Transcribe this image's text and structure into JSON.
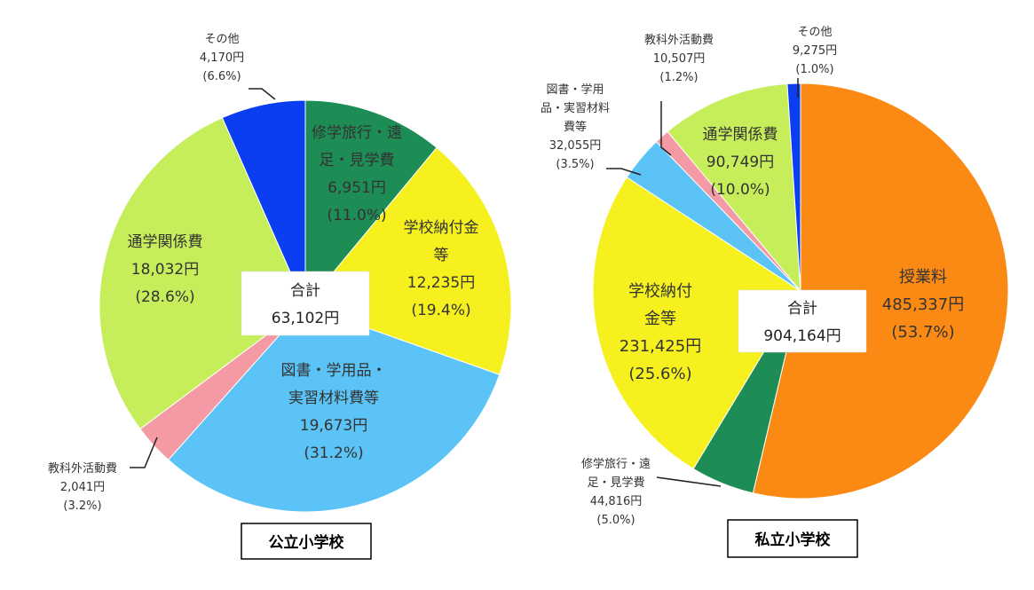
{
  "chart_data": [
    {
      "type": "pie",
      "title": "公立小学校",
      "total_label": "合計",
      "total_value": "63,102円",
      "slices": [
        {
          "name": "修学旅行・遠足・見学費",
          "label_lines": [
            "修学旅行・遠",
            "足・見学費"
          ],
          "value": 6951,
          "value_label": "6,951円",
          "percent": 11.0,
          "percent_label": "(11.0%)",
          "color": "#1e8c55"
        },
        {
          "name": "学校納付金等",
          "label_lines": [
            "学校納付金",
            "等"
          ],
          "value": 12235,
          "value_label": "12,235円",
          "percent": 19.4,
          "percent_label": "(19.4%)",
          "color": "#f5f01e"
        },
        {
          "name": "図書・学用品・実習材料費等",
          "label_lines": [
            "図書・学用品・",
            "実習材料費等"
          ],
          "value": 19673,
          "value_label": "19,673円",
          "percent": 31.2,
          "percent_label": "(31.2%)",
          "color": "#5bc3f5"
        },
        {
          "name": "教科外活動費",
          "label_lines": [
            "教科外活動費"
          ],
          "value": 2041,
          "value_label": "2,041円",
          "percent": 3.2,
          "percent_label": "(3.2%)",
          "color": "#f49aa5"
        },
        {
          "name": "通学関係費",
          "label_lines": [
            "通学関係費"
          ],
          "value": 18032,
          "value_label": "18,032円",
          "percent": 28.6,
          "percent_label": "(28.6%)",
          "color": "#c6ee5a"
        },
        {
          "name": "その他",
          "label_lines": [
            "その他"
          ],
          "value": 4170,
          "value_label": "4,170円",
          "percent": 6.6,
          "percent_label": "(6.6%)",
          "color": "#0b3ef0"
        }
      ]
    },
    {
      "type": "pie",
      "title": "私立小学校",
      "total_label": "合計",
      "total_value": "904,164円",
      "slices": [
        {
          "name": "授業料",
          "label_lines": [
            "授業料"
          ],
          "value": 485337,
          "value_label": "485,337円",
          "percent": 53.7,
          "percent_label": "(53.7%)",
          "color": "#fa8a14"
        },
        {
          "name": "修学旅行・遠足・見学費",
          "label_lines": [
            "修学旅行・遠",
            "足・見学費"
          ],
          "value": 44816,
          "value_label": "44,816円",
          "percent": 5.0,
          "percent_label": "(5.0%)",
          "color": "#1e8c55"
        },
        {
          "name": "学校納付金等",
          "label_lines": [
            "学校納付",
            "金等"
          ],
          "value": 231425,
          "value_label": "231,425円",
          "percent": 25.6,
          "percent_label": "(25.6%)",
          "color": "#f5f01e"
        },
        {
          "name": "図書・学用品・実習材料費等",
          "label_lines": [
            "図書・学用",
            "品・実習材料",
            "費等"
          ],
          "value": 32055,
          "value_label": "32,055円",
          "percent": 3.5,
          "percent_label": "(3.5%)",
          "color": "#5bc3f5"
        },
        {
          "name": "教科外活動費",
          "label_lines": [
            "教科外活動費"
          ],
          "value": 10507,
          "value_label": "10,507円",
          "percent": 1.2,
          "percent_label": "(1.2%)",
          "color": "#f49aa5"
        },
        {
          "name": "通学関係費",
          "label_lines": [
            "通学関係費"
          ],
          "value": 90749,
          "value_label": "90,749円",
          "percent": 10.0,
          "percent_label": "(10.0%)",
          "color": "#c6ee5a"
        },
        {
          "name": "その他",
          "label_lines": [
            "その他"
          ],
          "value": 9275,
          "value_label": "9,275円",
          "percent": 1.0,
          "percent_label": "(1.0%)",
          "color": "#0b3ef0"
        }
      ]
    }
  ]
}
